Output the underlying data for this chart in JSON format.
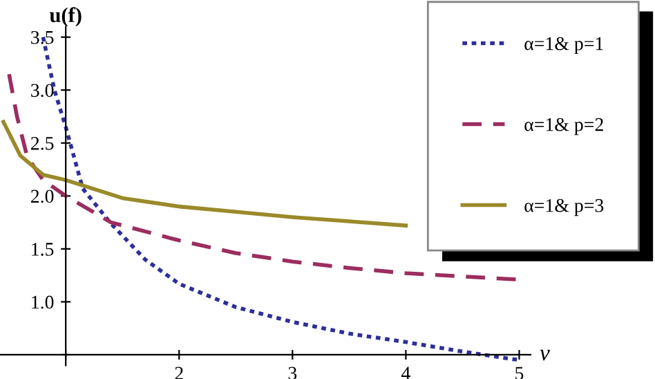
{
  "chart_data": {
    "type": "line",
    "xlabel": "ν",
    "ylabel": "u(f)",
    "xlim": [
      0.42,
      5.1
    ],
    "ylim": [
      0.4,
      3.6
    ],
    "xticks": [
      {
        "value": 1,
        "label": null
      },
      2,
      3,
      4,
      5
    ],
    "yticks": [
      {
        "value": 0.5,
        "label": null
      },
      {
        "value": 1.0,
        "label": "1.0"
      },
      {
        "value": 1.5,
        "label": "1.5"
      },
      {
        "value": 2.0,
        "label": "2.0"
      },
      {
        "value": 2.5,
        "label": "2.5"
      },
      {
        "value": 3.0,
        "label": "3.0"
      },
      {
        "value": 3.5,
        "label": "3.5"
      }
    ],
    "legend": "top right",
    "grid": false,
    "series": [
      {
        "name": "α=1& p=1",
        "color": "#2e2e9a",
        "line_style": "dotted",
        "x": [
          0.8,
          0.9,
          1.0,
          1.15,
          1.39,
          1.7,
          2,
          2.5,
          3,
          3.5,
          4,
          4.5,
          5
        ],
        "values": [
          3.5,
          3.0,
          2.65,
          2.07,
          1.75,
          1.4,
          1.17,
          0.95,
          0.81,
          0.7,
          0.62,
          0.53,
          0.45
        ]
      },
      {
        "name": "α=1& p=2",
        "color": "#9b2d5f",
        "line_style": "dashed",
        "x": [
          0.5,
          0.57,
          0.66,
          0.8,
          1.0,
          1.4,
          2,
          2.5,
          3,
          3.5,
          4,
          4.5,
          5
        ],
        "values": [
          3.15,
          2.75,
          2.37,
          2.15,
          2.0,
          1.75,
          1.58,
          1.46,
          1.38,
          1.32,
          1.27,
          1.24,
          1.21
        ]
      },
      {
        "name": "α=1& p=3",
        "color": "#9a8a2a",
        "line_style": "solid",
        "x": [
          0.45,
          0.6,
          0.8,
          1.0,
          1.5,
          2,
          2.5,
          3,
          3.5,
          4
        ],
        "values": [
          2.7,
          2.38,
          2.2,
          2.15,
          1.98,
          1.9,
          1.85,
          1.8,
          1.76,
          1.72
        ]
      }
    ]
  }
}
